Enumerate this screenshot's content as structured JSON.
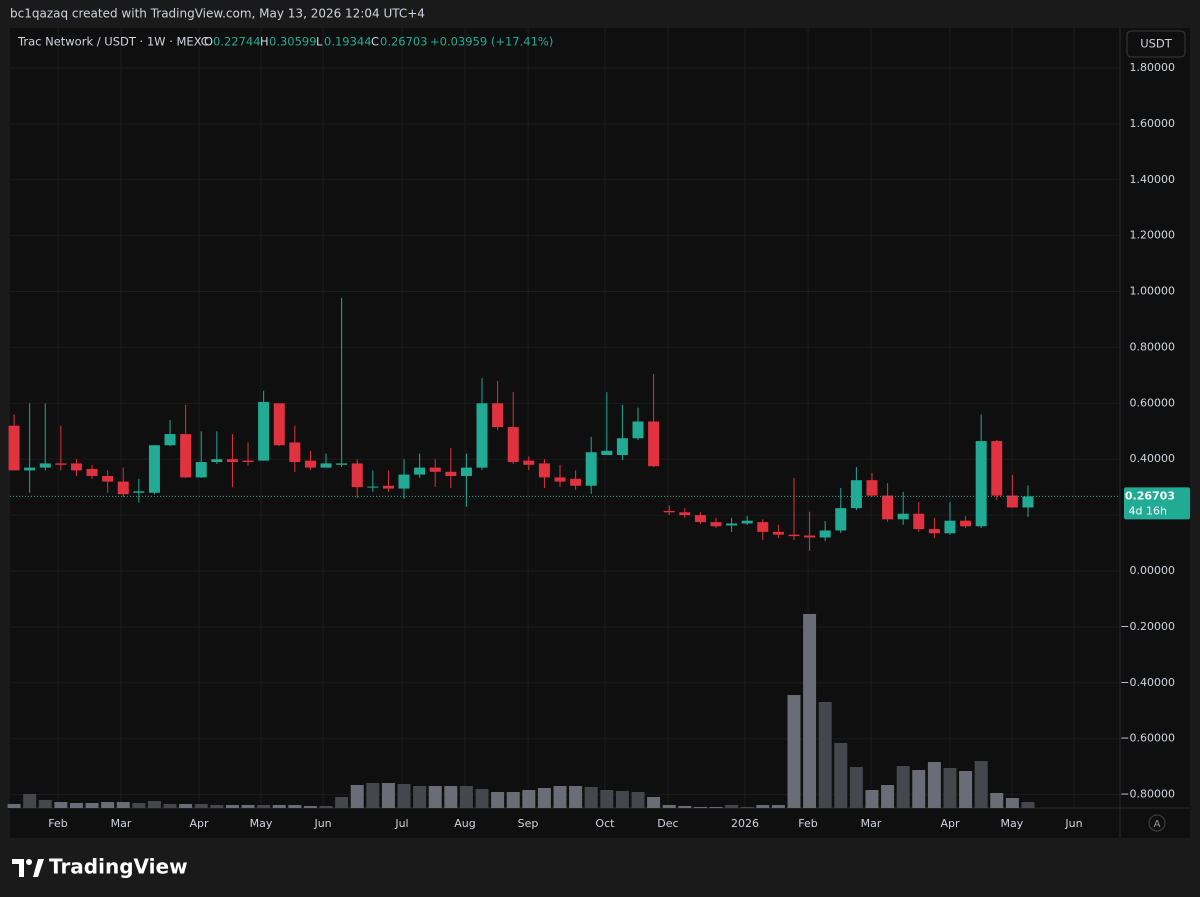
{
  "header": {
    "credit": "bc1qazaq created with TradingView.com, May 13, 2026 12:04 UTC+4"
  },
  "chart_data": {
    "type": "candlestick",
    "title": "Trac Network / USDT · 1W · MEXC",
    "ohlc_labels": [
      "O",
      "H",
      "L",
      "C"
    ],
    "change": "+0.03959 (+17.41%)",
    "currency": "USDT",
    "countdown": "4d 16h",
    "scale_button": "A",
    "up_color": "#22ab94",
    "down_color": "#e0323f",
    "volume_up_color": "#45474d",
    "volume_down_color": "#6a6d75",
    "grid": true,
    "open": [
      0.52,
      0.36,
      0.37,
      0.385,
      0.385,
      0.365,
      0.34,
      0.32,
      0.28,
      0.28,
      0.45,
      0.49,
      0.335,
      0.39,
      0.4,
      0.395,
      0.395,
      0.6,
      0.46,
      0.395,
      0.37,
      0.38,
      0.385,
      0.3,
      0.305,
      0.295,
      0.345,
      0.37,
      0.355,
      0.34,
      0.37,
      0.6,
      0.515,
      0.395,
      0.385,
      0.335,
      0.33,
      0.305,
      0.415,
      0.415,
      0.475,
      0.535,
      0.215,
      0.21,
      0.2,
      0.175,
      0.163,
      0.17,
      0.175,
      0.14,
      0.13,
      0.127,
      0.12,
      0.145,
      0.225,
      0.325,
      0.27,
      0.185,
      0.205,
      0.15,
      0.135,
      0.18,
      0.16,
      0.465,
      0.27,
      0.22744
    ],
    "high": [
      0.56,
      0.6,
      0.6,
      0.52,
      0.4,
      0.38,
      0.36,
      0.37,
      0.33,
      0.45,
      0.54,
      0.595,
      0.5,
      0.5,
      0.49,
      0.46,
      0.645,
      0.6,
      0.52,
      0.43,
      0.42,
      0.977,
      0.4,
      0.36,
      0.36,
      0.4,
      0.42,
      0.4,
      0.44,
      0.42,
      0.69,
      0.68,
      0.64,
      0.41,
      0.4,
      0.38,
      0.36,
      0.48,
      0.64,
      0.595,
      0.585,
      0.705,
      0.235,
      0.225,
      0.21,
      0.19,
      0.19,
      0.197,
      0.185,
      0.165,
      0.333,
      0.212,
      0.179,
      0.297,
      0.372,
      0.351,
      0.315,
      0.283,
      0.247,
      0.19,
      0.247,
      0.197,
      0.56,
      0.469,
      0.344,
      0.30599
    ],
    "low": [
      0.36,
      0.28,
      0.36,
      0.36,
      0.34,
      0.33,
      0.28,
      0.265,
      0.245,
      0.275,
      0.447,
      0.333,
      0.333,
      0.383,
      0.3,
      0.376,
      0.394,
      0.447,
      0.354,
      0.361,
      0.372,
      0.372,
      0.261,
      0.283,
      0.283,
      0.258,
      0.333,
      0.301,
      0.297,
      0.23,
      0.362,
      0.505,
      0.383,
      0.361,
      0.297,
      0.301,
      0.29,
      0.276,
      0.415,
      0.397,
      0.469,
      0.372,
      0.2,
      0.19,
      0.168,
      0.154,
      0.14,
      0.165,
      0.111,
      0.118,
      0.111,
      0.072,
      0.107,
      0.136,
      0.218,
      0.265,
      0.176,
      0.165,
      0.14,
      0.118,
      0.129,
      0.154,
      0.154,
      0.254,
      0.226,
      0.19344
    ],
    "close": [
      0.36,
      0.37,
      0.385,
      0.38,
      0.36,
      0.34,
      0.32,
      0.275,
      0.285,
      0.45,
      0.49,
      0.335,
      0.39,
      0.4,
      0.39,
      0.39,
      0.605,
      0.45,
      0.39,
      0.37,
      0.385,
      0.385,
      0.3,
      0.302,
      0.295,
      0.345,
      0.37,
      0.355,
      0.34,
      0.37,
      0.6,
      0.515,
      0.39,
      0.38,
      0.335,
      0.32,
      0.305,
      0.425,
      0.43,
      0.475,
      0.535,
      0.375,
      0.21,
      0.2,
      0.175,
      0.16,
      0.17,
      0.18,
      0.14,
      0.13,
      0.125,
      0.12,
      0.145,
      0.225,
      0.325,
      0.27,
      0.185,
      0.205,
      0.15,
      0.135,
      0.18,
      0.16,
      0.465,
      0.27,
      0.22744,
      0.26703
    ],
    "volume": [
      4,
      14,
      8,
      6,
      5,
      5,
      6,
      6,
      5,
      7,
      4,
      4,
      4,
      3,
      3,
      3,
      3,
      3,
      3,
      2,
      2,
      11,
      23,
      25,
      25,
      24,
      22,
      22,
      22,
      22,
      19,
      16,
      16,
      18,
      20,
      22,
      22,
      21,
      18,
      17,
      16,
      11,
      3,
      2,
      1,
      1,
      3,
      1,
      3,
      3,
      113,
      194,
      106,
      65,
      41,
      18,
      23,
      42,
      38,
      46,
      40,
      37,
      47,
      15,
      10,
      6
    ],
    "ylim": [
      -0.848,
      1.943
    ],
    "yticks": [
      {
        "value": 1.8,
        "label": "1.80000"
      },
      {
        "value": 1.6,
        "label": "1.60000"
      },
      {
        "value": 1.4,
        "label": "1.40000"
      },
      {
        "value": 1.2,
        "label": "1.20000"
      },
      {
        "value": 1.0,
        "label": "1.00000"
      },
      {
        "value": 0.8,
        "label": "0.80000"
      },
      {
        "value": 0.6,
        "label": "0.60000"
      },
      {
        "value": 0.4,
        "label": "0.40000"
      },
      {
        "value": 0.2,
        "label": "0.20000"
      },
      {
        "value": 0,
        "label": "0.00000"
      },
      {
        "value": -0.2,
        "label": "−0.20000"
      },
      {
        "value": -0.4,
        "label": "−0.40000"
      },
      {
        "value": -0.6,
        "label": "−0.60000"
      },
      {
        "value": -0.8,
        "label": "−0.80000"
      }
    ],
    "xlim": [
      -0.26,
      70.9
    ],
    "xticks": [
      {
        "value": 2.82,
        "label": "Feb"
      },
      {
        "value": 6.86,
        "label": "Mar"
      },
      {
        "value": 11.86,
        "label": "Apr"
      },
      {
        "value": 15.83,
        "label": "May"
      },
      {
        "value": 19.81,
        "label": "Jun"
      },
      {
        "value": 24.87,
        "label": "Jul"
      },
      {
        "value": 28.91,
        "label": "Aug"
      },
      {
        "value": 32.95,
        "label": "Sep"
      },
      {
        "value": 37.88,
        "label": "Oct"
      },
      {
        "value": 41.92,
        "label": "Dec"
      },
      {
        "value": 46.86,
        "label": "2026"
      },
      {
        "value": 50.9,
        "label": "Feb"
      },
      {
        "value": 54.94,
        "label": "Mar"
      },
      {
        "value": 60.0,
        "label": "Apr"
      },
      {
        "value": 63.97,
        "label": "May"
      },
      {
        "value": 67.95,
        "label": "Jun"
      }
    ]
  },
  "footer": {
    "brand": "TradingView"
  }
}
